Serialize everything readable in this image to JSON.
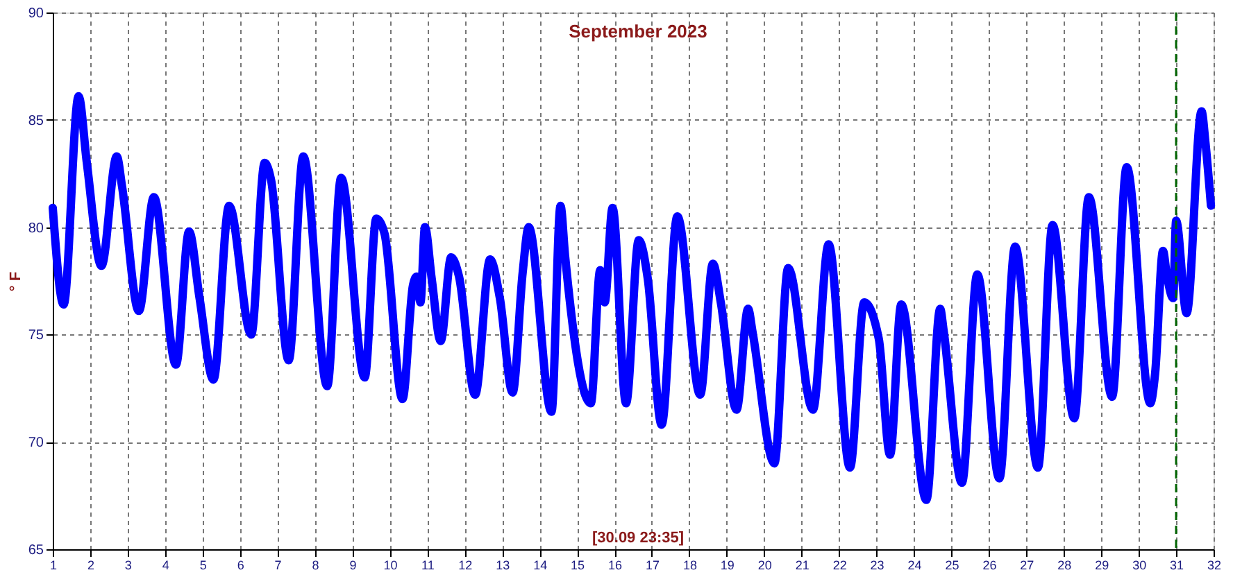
{
  "chart_data": {
    "type": "line",
    "title": "September 2023",
    "ylabel": "° F",
    "annotations": [
      "[30.09 23:35]"
    ],
    "series": [
      {
        "color": "#0000ff",
        "x": [
          1.0,
          1.29,
          1.69,
          1.91,
          2.3,
          2.71,
          2.85,
          3.3,
          3.7,
          4.29,
          4.64,
          4.92,
          5.29,
          5.71,
          6.3,
          6.66,
          6.83,
          7.3,
          7.69,
          8.33,
          8.7,
          9.33,
          9.64,
          9.86,
          10.34,
          10.62,
          10.72,
          10.82,
          10.94,
          11.12,
          11.36,
          11.64,
          11.85,
          12.28,
          12.68,
          12.94,
          13.28,
          13.55,
          13.71,
          14.32,
          14.56,
          14.68,
          15.37,
          15.62,
          15.74,
          15.95,
          16.31,
          16.65,
          16.89,
          17.26,
          17.68,
          18.29,
          18.63,
          18.84,
          19.26,
          19.57,
          19.69,
          20.27,
          20.64,
          21.3,
          21.72,
          22.29,
          22.67,
          23.06,
          23.36,
          23.66,
          24.33,
          24.7,
          24.79,
          25.28,
          25.69,
          26.28,
          26.7,
          27.31,
          27.7,
          28.28,
          28.67,
          29.29,
          29.68,
          30.31,
          30.44,
          30.65,
          30.75,
          30.92,
          31.0,
          31.28,
          31.68,
          31.78,
          31.93
        ],
        "values": [
          80.9,
          76.4,
          86.1,
          83.0,
          78.2,
          83.3,
          81.9,
          76.1,
          81.4,
          73.6,
          79.8,
          76.7,
          72.9,
          81.0,
          75.0,
          83.0,
          82.2,
          73.8,
          83.3,
          72.6,
          82.3,
          73.0,
          80.4,
          79.7,
          72.0,
          77.3,
          77.7,
          76.5,
          80.0,
          77.6,
          74.7,
          78.6,
          77.7,
          72.2,
          78.5,
          76.7,
          72.3,
          77.9,
          80.0,
          71.4,
          81.0,
          78.7,
          71.8,
          78.0,
          76.5,
          80.9,
          71.8,
          79.4,
          77.6,
          70.8,
          80.5,
          72.2,
          78.3,
          76.5,
          71.5,
          76.2,
          75.1,
          69.0,
          78.1,
          71.5,
          79.2,
          68.8,
          76.5,
          74.8,
          69.4,
          76.4,
          67.3,
          76.2,
          75.2,
          68.1,
          77.8,
          68.3,
          79.1,
          68.8,
          80.1,
          71.1,
          81.4,
          72.1,
          82.8,
          71.8,
          73.2,
          78.9,
          77.8,
          76.7,
          80.3,
          76.0,
          85.4,
          84.0,
          81.0
        ]
      }
    ],
    "xlim": [
      1,
      32
    ],
    "xticks": [
      1,
      2,
      3,
      4,
      5,
      6,
      7,
      8,
      9,
      10,
      11,
      12,
      13,
      14,
      15,
      16,
      17,
      18,
      19,
      20,
      21,
      22,
      23,
      24,
      25,
      26,
      27,
      28,
      29,
      30,
      31,
      32
    ],
    "ylim": [
      65,
      90
    ],
    "yticks": [
      65,
      70,
      75,
      80,
      85,
      90
    ],
    "ref_lines": [
      {
        "axis": "x",
        "value": 31,
        "color": "#006400",
        "line_style": "dashed"
      }
    ],
    "grid": true,
    "marker": "none",
    "line_style": "solid"
  }
}
